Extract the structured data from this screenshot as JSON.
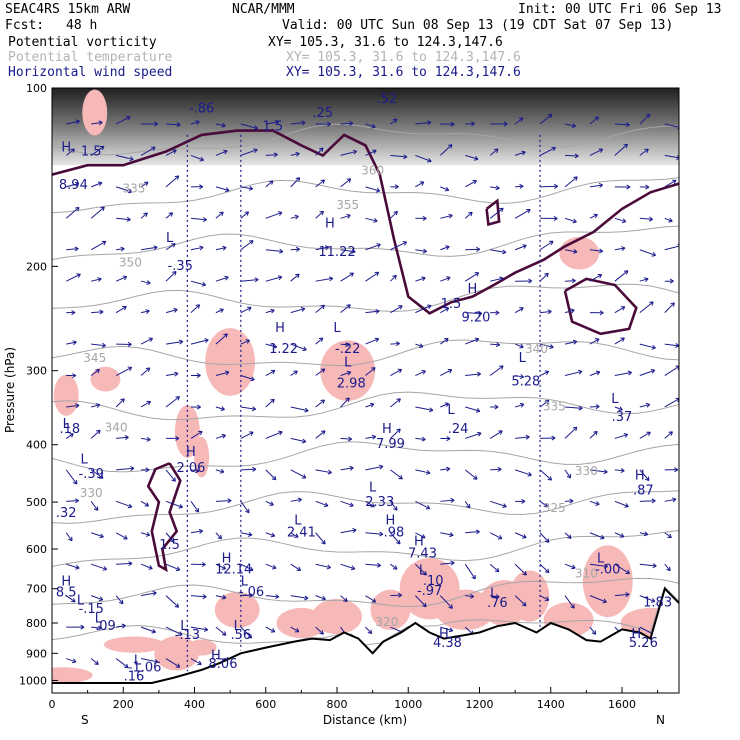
{
  "header": {
    "model": "SEAC4RS 15km ARW",
    "org": "NCAR/MMM",
    "init": "Init: 00 UTC Fri 06 Sep 13",
    "fcst_label": "Fcst:",
    "fcst_value": "48 h",
    "valid": "Valid: 00 UTC Sun 08 Sep 13 (19 CDT Sat 07 Sep 13)"
  },
  "legend": [
    {
      "name": "Potential vorticity",
      "xy": "XY= 105.3, 31.6 to 124.3,147.6",
      "color": "#000000"
    },
    {
      "name": "Potential temperature",
      "xy": "XY= 105.3, 31.6 to 124.3,147.6",
      "color": "#b4b4b4"
    },
    {
      "name": "Horizontal wind speed",
      "xy": "XY= 105.3, 31.6 to 124.3,147.6",
      "color": "#1b1b8c"
    }
  ],
  "colors": {
    "pv_contour": "#4a0a3a",
    "theta_contour": "#a6a6a6",
    "wind_vector": "#1b1b8c",
    "shading_pink": "#f7b8b8",
    "terrain": "#000000"
  },
  "chart_data": {
    "type": "cross-section",
    "xlabel": "Distance (km)",
    "ylabel": "Pressure (hPa)",
    "xlim": [
      0,
      1760
    ],
    "ylim": [
      1050,
      100
    ],
    "y_scale": "log",
    "x_ticks": [
      0,
      200,
      400,
      600,
      800,
      1000,
      1200,
      1400,
      1600
    ],
    "y_ticks": [
      100,
      200,
      300,
      400,
      500,
      600,
      700,
      800,
      900,
      1000
    ],
    "endpoint_labels": {
      "left": "S",
      "right": "N"
    },
    "terrain_profile": [
      {
        "x": 0,
        "p": 1010
      },
      {
        "x": 280,
        "p": 1010
      },
      {
        "x": 340,
        "p": 990
      },
      {
        "x": 420,
        "p": 960
      },
      {
        "x": 470,
        "p": 935
      },
      {
        "x": 530,
        "p": 900
      },
      {
        "x": 600,
        "p": 880
      },
      {
        "x": 680,
        "p": 860
      },
      {
        "x": 730,
        "p": 850
      },
      {
        "x": 780,
        "p": 855
      },
      {
        "x": 820,
        "p": 830
      },
      {
        "x": 860,
        "p": 850
      },
      {
        "x": 900,
        "p": 900
      },
      {
        "x": 930,
        "p": 860
      },
      {
        "x": 980,
        "p": 830
      },
      {
        "x": 1020,
        "p": 800
      },
      {
        "x": 1060,
        "p": 830
      },
      {
        "x": 1100,
        "p": 850
      },
      {
        "x": 1150,
        "p": 840
      },
      {
        "x": 1200,
        "p": 830
      },
      {
        "x": 1250,
        "p": 810
      },
      {
        "x": 1300,
        "p": 800
      },
      {
        "x": 1360,
        "p": 830
      },
      {
        "x": 1400,
        "p": 800
      },
      {
        "x": 1450,
        "p": 820
      },
      {
        "x": 1500,
        "p": 855
      },
      {
        "x": 1540,
        "p": 860
      },
      {
        "x": 1600,
        "p": 820
      },
      {
        "x": 1650,
        "p": 830
      },
      {
        "x": 1680,
        "p": 850
      },
      {
        "x": 1720,
        "p": 700
      },
      {
        "x": 1760,
        "p": 740
      }
    ],
    "pv_labels": [
      {
        "t": "1.5",
        "x": 620,
        "p": 118
      },
      {
        "t": "1.5",
        "x": 1120,
        "p": 235
      },
      {
        "t": "1.5",
        "x": 330,
        "p": 600
      },
      {
        "t": "1.5",
        "x": 110,
        "p": 130
      }
    ],
    "theta_labels": [
      {
        "t": "335",
        "x": 230,
        "p": 150
      },
      {
        "t": "350",
        "x": 220,
        "p": 200
      },
      {
        "t": "345",
        "x": 120,
        "p": 290
      },
      {
        "t": "340",
        "x": 180,
        "p": 380
      },
      {
        "t": "330",
        "x": 1500,
        "p": 450
      },
      {
        "t": "325",
        "x": 1410,
        "p": 520
      },
      {
        "t": "335",
        "x": 1410,
        "p": 350
      },
      {
        "t": "340",
        "x": 1360,
        "p": 280
      },
      {
        "t": "355",
        "x": 830,
        "p": 160
      },
      {
        "t": "360",
        "x": 900,
        "p": 140
      },
      {
        "t": "330",
        "x": 110,
        "p": 490
      },
      {
        "t": "320",
        "x": 940,
        "p": 810
      },
      {
        "t": "310",
        "x": 1500,
        "p": 670
      }
    ],
    "extrema_labels": [
      {
        "t": "H",
        "x": 40,
        "p": 128
      },
      {
        "t": "8.94",
        "x": 60,
        "p": 148
      },
      {
        "t": "L",
        "x": 330,
        "p": 182
      },
      {
        "t": "-.35",
        "x": 360,
        "p": 203
      },
      {
        "t": "-.86",
        "x": 420,
        "p": 110
      },
      {
        "t": ".25",
        "x": 760,
        "p": 112
      },
      {
        "t": ".52",
        "x": 940,
        "p": 106
      },
      {
        "t": "H",
        "x": 780,
        "p": 172
      },
      {
        "t": "11.22",
        "x": 800,
        "p": 192
      },
      {
        "t": "H",
        "x": 640,
        "p": 258
      },
      {
        "t": "1.22",
        "x": 650,
        "p": 280
      },
      {
        "t": "L",
        "x": 800,
        "p": 258
      },
      {
        "t": "-.22",
        "x": 830,
        "p": 280
      },
      {
        "t": "L",
        "x": 830,
        "p": 295
      },
      {
        "t": "2.98",
        "x": 840,
        "p": 320
      },
      {
        "t": "H",
        "x": 1180,
        "p": 222
      },
      {
        "t": "9.20",
        "x": 1190,
        "p": 248
      },
      {
        "t": "L",
        "x": 1320,
        "p": 290
      },
      {
        "t": "5.28",
        "x": 1330,
        "p": 318
      },
      {
        "t": "L",
        "x": 1580,
        "p": 340
      },
      {
        "t": ".37",
        "x": 1600,
        "p": 365
      },
      {
        "t": "L",
        "x": 1120,
        "p": 355
      },
      {
        "t": ".24",
        "x": 1140,
        "p": 382
      },
      {
        "t": "H",
        "x": 940,
        "p": 382
      },
      {
        "t": "7.99",
        "x": 950,
        "p": 405
      },
      {
        "t": "L",
        "x": 40,
        "p": 375
      },
      {
        "t": ".18",
        "x": 50,
        "p": 382
      },
      {
        "t": "L",
        "x": 90,
        "p": 430
      },
      {
        "t": "-.39",
        "x": 110,
        "p": 455
      },
      {
        "t": "H",
        "x": 390,
        "p": 418
      },
      {
        "t": "2.06",
        "x": 390,
        "p": 445
      },
      {
        "t": "L",
        "x": 900,
        "p": 480
      },
      {
        "t": "2.33",
        "x": 920,
        "p": 508
      },
      {
        "t": "H",
        "x": 1650,
        "p": 458
      },
      {
        "t": ".87",
        "x": 1660,
        "p": 485
      },
      {
        "t": ".32",
        "x": 40,
        "p": 530
      },
      {
        "t": "H",
        "x": 950,
        "p": 545
      },
      {
        "t": ".98",
        "x": 960,
        "p": 572
      },
      {
        "t": "L",
        "x": 690,
        "p": 545
      },
      {
        "t": "2.41",
        "x": 700,
        "p": 572
      },
      {
        "t": "H",
        "x": 1030,
        "p": 592
      },
      {
        "t": "7.43",
        "x": 1040,
        "p": 620
      },
      {
        "t": "H",
        "x": 490,
        "p": 632
      },
      {
        "t": "12.14",
        "x": 510,
        "p": 660
      },
      {
        "t": "L",
        "x": 1540,
        "p": 632
      },
      {
        "t": "-.00",
        "x": 1560,
        "p": 660
      },
      {
        "t": "L",
        "x": 1040,
        "p": 662
      },
      {
        "t": ".10",
        "x": 1070,
        "p": 690
      },
      {
        "t": "-.97",
        "x": 1060,
        "p": 718
      },
      {
        "t": "L",
        "x": 540,
        "p": 692
      },
      {
        "t": "-.06",
        "x": 560,
        "p": 720
      },
      {
        "t": "H",
        "x": 40,
        "p": 692
      },
      {
        "t": "8.5",
        "x": 40,
        "p": 722
      },
      {
        "t": "L",
        "x": 80,
        "p": 745
      },
      {
        "t": "-.15",
        "x": 110,
        "p": 770
      },
      {
        "t": "L",
        "x": 1240,
        "p": 725
      },
      {
        "t": ".76",
        "x": 1250,
        "p": 752
      },
      {
        "t": "1.83",
        "x": 1700,
        "p": 750
      },
      {
        "t": "L",
        "x": 130,
        "p": 798
      },
      {
        "t": ".09",
        "x": 150,
        "p": 822
      },
      {
        "t": "L",
        "x": 370,
        "p": 822
      },
      {
        "t": "-.13",
        "x": 380,
        "p": 852
      },
      {
        "t": "L",
        "x": 520,
        "p": 822
      },
      {
        "t": ".56",
        "x": 530,
        "p": 852
      },
      {
        "t": "H",
        "x": 1100,
        "p": 848
      },
      {
        "t": "4.38",
        "x": 1110,
        "p": 878
      },
      {
        "t": "H",
        "x": 1640,
        "p": 848
      },
      {
        "t": "5.26",
        "x": 1660,
        "p": 878
      },
      {
        "t": "H",
        "x": 460,
        "p": 922
      },
      {
        "t": "8.06",
        "x": 480,
        "p": 952
      },
      {
        "t": "L",
        "x": 240,
        "p": 940
      },
      {
        "t": "-1.06",
        "x": 260,
        "p": 965
      },
      {
        "t": ".16",
        "x": 230,
        "p": 1000
      }
    ]
  }
}
